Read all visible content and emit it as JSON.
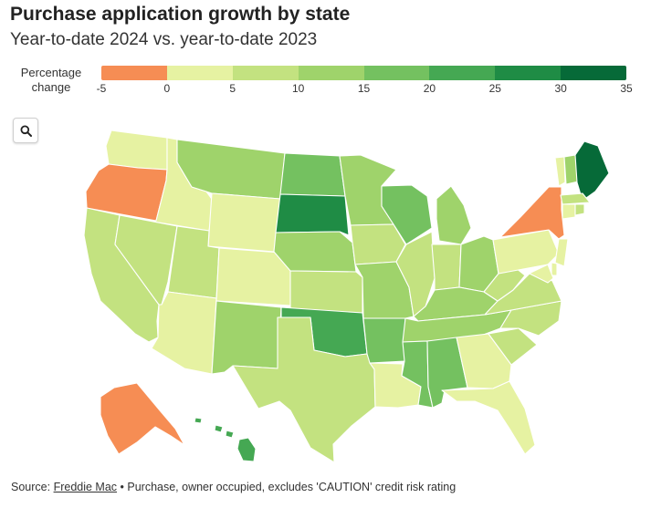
{
  "header": {
    "title": "Purchase application growth by state",
    "subtitle": "Year-to-date 2024 vs. year-to-date 2023"
  },
  "legend": {
    "title_line1": "Percentage",
    "title_line2": "change",
    "ticks": [
      "-5",
      "0",
      "5",
      "10",
      "15",
      "20",
      "25",
      "30",
      "35"
    ],
    "bins": [
      {
        "range": [
          -5,
          0
        ],
        "color": "#f68d54"
      },
      {
        "range": [
          0,
          5
        ],
        "color": "#e6f2a2"
      },
      {
        "range": [
          5,
          10
        ],
        "color": "#c3e280"
      },
      {
        "range": [
          10,
          15
        ],
        "color": "#9fd36b"
      },
      {
        "range": [
          15,
          20
        ],
        "color": "#74c160"
      },
      {
        "range": [
          20,
          25
        ],
        "color": "#45a853"
      },
      {
        "range": [
          25,
          30
        ],
        "color": "#1f8c45"
      },
      {
        "range": [
          30,
          35
        ],
        "color": "#066a38"
      }
    ]
  },
  "controls": {
    "search_icon": "search-icon"
  },
  "map": {
    "states": [
      {
        "abbr": "WA",
        "bin": 1
      },
      {
        "abbr": "OR",
        "bin": 0
      },
      {
        "abbr": "CA",
        "bin": 2
      },
      {
        "abbr": "ID",
        "bin": 1
      },
      {
        "abbr": "NV",
        "bin": 2
      },
      {
        "abbr": "MT",
        "bin": 3
      },
      {
        "abbr": "WY",
        "bin": 1
      },
      {
        "abbr": "UT",
        "bin": 2
      },
      {
        "abbr": "AZ",
        "bin": 1
      },
      {
        "abbr": "CO",
        "bin": 1
      },
      {
        "abbr": "NM",
        "bin": 3
      },
      {
        "abbr": "ND",
        "bin": 4
      },
      {
        "abbr": "SD",
        "bin": 6
      },
      {
        "abbr": "NE",
        "bin": 3
      },
      {
        "abbr": "KS",
        "bin": 2
      },
      {
        "abbr": "OK",
        "bin": 5
      },
      {
        "abbr": "TX",
        "bin": 2
      },
      {
        "abbr": "MN",
        "bin": 3
      },
      {
        "abbr": "IA",
        "bin": 2
      },
      {
        "abbr": "MO",
        "bin": 3
      },
      {
        "abbr": "AR",
        "bin": 4
      },
      {
        "abbr": "LA",
        "bin": 1
      },
      {
        "abbr": "WI",
        "bin": 4
      },
      {
        "abbr": "IL",
        "bin": 2
      },
      {
        "abbr": "MI",
        "bin": 3
      },
      {
        "abbr": "IN",
        "bin": 2
      },
      {
        "abbr": "OH",
        "bin": 3
      },
      {
        "abbr": "KY",
        "bin": 3
      },
      {
        "abbr": "TN",
        "bin": 3
      },
      {
        "abbr": "MS",
        "bin": 4
      },
      {
        "abbr": "AL",
        "bin": 4
      },
      {
        "abbr": "GA",
        "bin": 1
      },
      {
        "abbr": "FL",
        "bin": 1
      },
      {
        "abbr": "SC",
        "bin": 2
      },
      {
        "abbr": "NC",
        "bin": 2
      },
      {
        "abbr": "VA",
        "bin": 2
      },
      {
        "abbr": "WV",
        "bin": 2
      },
      {
        "abbr": "PA",
        "bin": 1
      },
      {
        "abbr": "NY",
        "bin": 0
      },
      {
        "abbr": "VT",
        "bin": 1
      },
      {
        "abbr": "NH",
        "bin": 3
      },
      {
        "abbr": "ME",
        "bin": 7
      },
      {
        "abbr": "MA",
        "bin": 2
      },
      {
        "abbr": "CT",
        "bin": 1
      },
      {
        "abbr": "RI",
        "bin": 2
      },
      {
        "abbr": "NJ",
        "bin": 1
      },
      {
        "abbr": "DE",
        "bin": 1
      },
      {
        "abbr": "MD",
        "bin": 1
      },
      {
        "abbr": "AK",
        "bin": 0
      },
      {
        "abbr": "HI",
        "bin": 5
      }
    ]
  },
  "footer": {
    "source_label": "Source: ",
    "source_link": "Freddie Mac",
    "source_note": " • Purchase, owner occupied, excludes 'CAUTION' credit risk rating"
  }
}
